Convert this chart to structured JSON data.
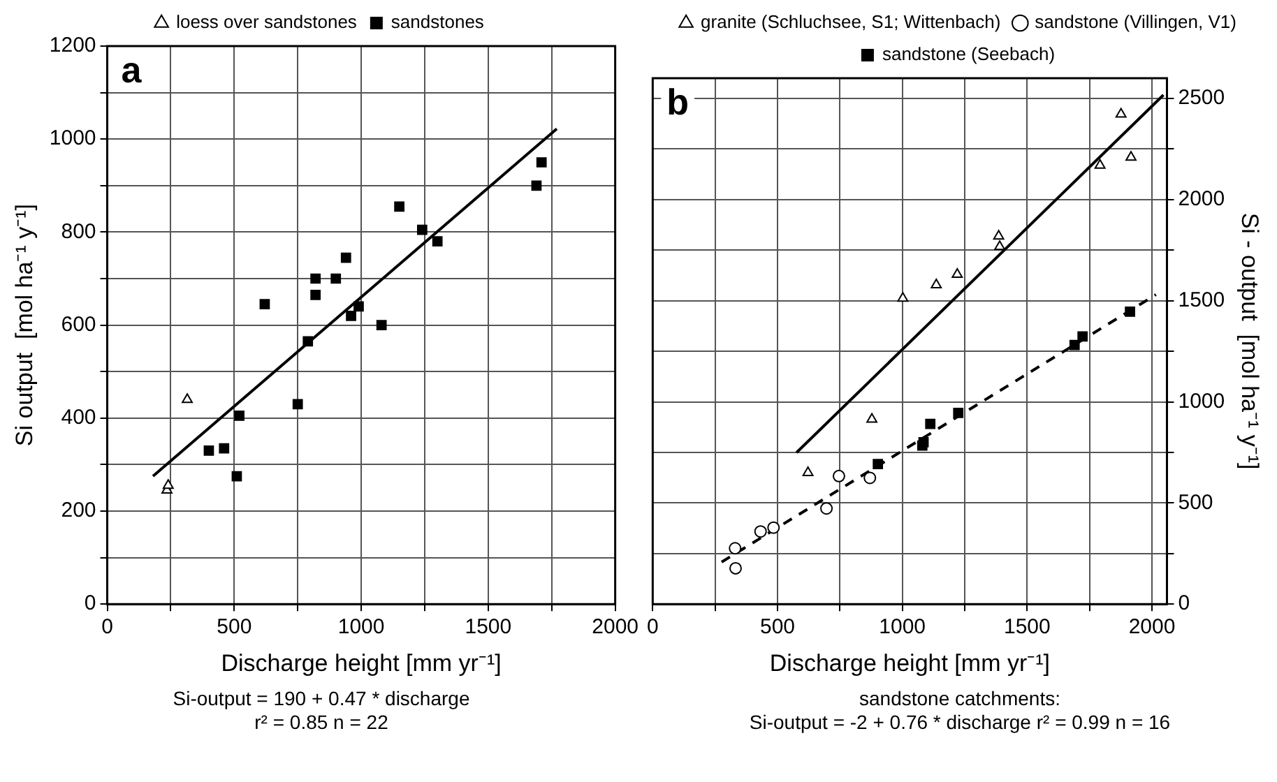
{
  "chart_data": [
    {
      "type": "scatter",
      "title": "a",
      "xlabel": "Discharge height [mm yr⁻¹]",
      "ylabel": "Si output  [mol ha⁻¹ y⁻¹]",
      "xlim": [
        0,
        2000
      ],
      "xticks": [
        0,
        {
          "value": 250,
          "label": null
        },
        500,
        {
          "value": 750,
          "label": null
        },
        1000,
        {
          "value": 1250,
          "label": null
        },
        1500,
        {
          "value": 1750,
          "label": null
        },
        2000
      ],
      "ylim": [
        0,
        1200
      ],
      "yticks": [
        0,
        {
          "value": 100,
          "label": null
        },
        200,
        {
          "value": 300,
          "label": null
        },
        400,
        {
          "value": 500,
          "label": null
        },
        600,
        {
          "value": 700,
          "label": null
        },
        800,
        {
          "value": 900,
          "label": null
        },
        1000,
        {
          "value": 1100,
          "label": null
        },
        1200
      ],
      "grid": true,
      "legend": "top",
      "annotations": [
        "Si-output = 190 + 0.47 * discharge",
        "r² = 0.85 n = 22"
      ],
      "series": [
        {
          "name": "loess over sandstones",
          "color": "#000000",
          "marker": "triangle",
          "x": [
            235,
            240,
            315
          ],
          "values": [
            245,
            255,
            440
          ]
        },
        {
          "name": "sandstones",
          "color": "#000000",
          "marker": "square",
          "x": [
            400,
            460,
            510,
            520,
            620,
            750,
            790,
            820,
            820,
            900,
            940,
            960,
            990,
            1080,
            1150,
            1240,
            1300,
            1690,
            1710
          ],
          "values": [
            330,
            335,
            275,
            405,
            645,
            430,
            565,
            700,
            665,
            700,
            745,
            620,
            640,
            600,
            855,
            805,
            780,
            900,
            950
          ]
        },
        {
          "type": "line",
          "color": "#000000",
          "marker": "none",
          "line_style": "solid",
          "x": [
            180,
            1770
          ],
          "values": [
            275,
            1022
          ]
        }
      ]
    },
    {
      "type": "scatter",
      "title": "b",
      "xlabel": "Discharge height [mm yr⁻¹]",
      "y2label": "Si - output  [mol ha⁻¹ y⁻¹]",
      "xlim": [
        0,
        2060
      ],
      "xticks": [
        0,
        {
          "value": 250,
          "label": null
        },
        500,
        {
          "value": 750,
          "label": null
        },
        1000,
        {
          "value": 1250,
          "label": null
        },
        1500,
        {
          "value": 1750,
          "label": null
        },
        2000
      ],
      "y2lim": [
        0,
        2600
      ],
      "y2ticks": [
        0,
        {
          "value": 250,
          "label": null
        },
        500,
        {
          "value": 750,
          "label": null
        },
        1000,
        {
          "value": 1250,
          "label": null
        },
        1500,
        {
          "value": 1750,
          "label": null
        },
        2000,
        {
          "value": 2250,
          "label": null
        },
        2500
      ],
      "grid": true,
      "legend": "top",
      "annotations": [
        "sandstone catchments:",
        "Si-output = -2 + 0.76 * discharge   r² = 0.99   n = 16"
      ],
      "series": [
        {
          "name": "granite (Schluchsee, S1; Wittenbach)",
          "color": "#000000",
          "marker": "triangle",
          "axis": "y2",
          "x": [
            1876,
            1916,
            1792,
            1386,
            1390,
            1220,
            1136,
            1002,
            878,
            622
          ],
          "values": [
            2422,
            2209,
            2169,
            1819,
            1767,
            1630,
            1578,
            1512,
            914,
            650
          ]
        },
        {
          "name": "sandstone (Villingen, V1)",
          "color": "#000000",
          "marker": "circle",
          "axis": "y2",
          "x": [
            330,
            332,
            432,
            484,
            696,
            746,
            870
          ],
          "values": [
            276,
            177,
            359,
            378,
            473,
            633,
            624
          ]
        },
        {
          "name": "sandstone (Seebach)",
          "color": "#000000",
          "marker": "square",
          "axis": "y2",
          "x": [
            902,
            1080,
            1085,
            1112,
            1224,
            1690,
            1722,
            1912
          ],
          "values": [
            692,
            784,
            800,
            891,
            945,
            1281,
            1323,
            1446
          ]
        },
        {
          "type": "line",
          "color": "#000000",
          "marker": "none",
          "line_style": "solid",
          "axis": "y2",
          "x": [
            576,
            2046
          ],
          "values": [
            749,
            2517
          ]
        },
        {
          "type": "line",
          "color": "#000000",
          "marker": "none",
          "line_style": "dashed",
          "axis": "y2",
          "x": [
            276,
            2016
          ],
          "values": [
            208,
            1530
          ]
        }
      ]
    }
  ]
}
